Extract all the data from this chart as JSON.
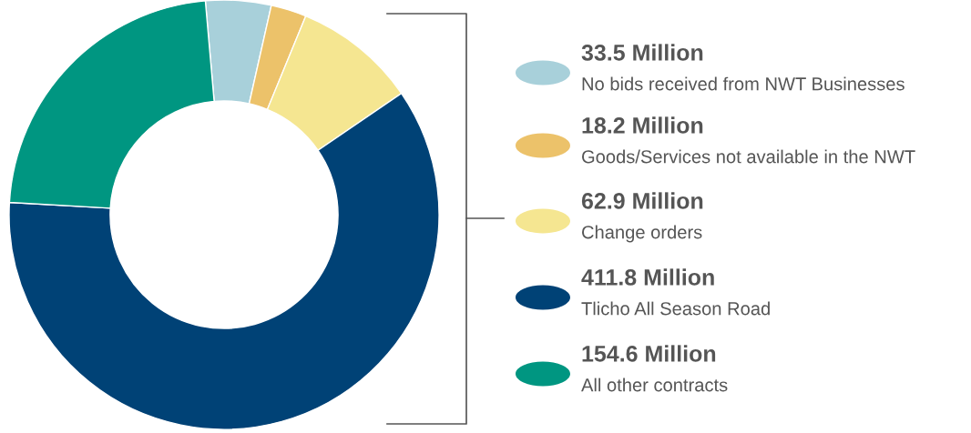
{
  "chart_data": {
    "type": "donut",
    "categories": [
      "No bids received from NWT Businesses",
      "Goods/Services not available in the NWT",
      "Change orders",
      "Tlicho All Season Road",
      "All other contracts"
    ],
    "values": [
      33.5,
      18.2,
      62.9,
      411.8,
      154.6
    ],
    "value_labels": [
      "33.5 Million",
      "18.2 Million",
      "62.9 Million",
      "411.8 Million",
      "154.6 Million"
    ],
    "colors": [
      "#a8d0da",
      "#ecc26a",
      "#f5e691",
      "#004276",
      "#009681"
    ],
    "legend": "right"
  }
}
